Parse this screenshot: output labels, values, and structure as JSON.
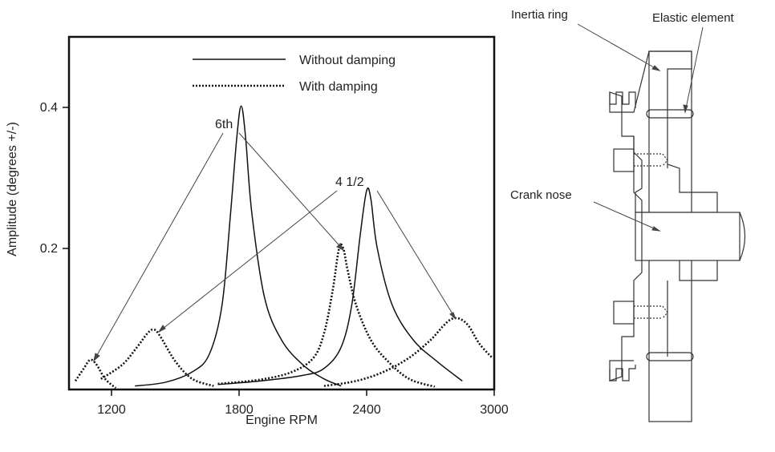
{
  "chart_data": {
    "type": "line",
    "title": "",
    "xlabel": "Engine RPM",
    "ylabel": "Amplitude (degrees +/-)",
    "xlim": [
      1000,
      3000
    ],
    "ylim": [
      0,
      0.5
    ],
    "x_ticks": [
      "1200",
      "1800",
      "2400",
      "3000"
    ],
    "y_ticks": [
      "0.2",
      "0.4"
    ],
    "grid": false,
    "legend_position": "top-center",
    "legend": [
      {
        "label": "Without damping",
        "style": "solid"
      },
      {
        "label": "With damping",
        "style": "dotted"
      }
    ],
    "annotations": [
      {
        "text": "6th",
        "x": 1790,
        "y": 0.375
      },
      {
        "text": "4 1/2",
        "x": 2335,
        "y": 0.296
      }
    ],
    "series": [
      {
        "style": "solid",
        "x": [
          1310,
          1450,
          1580,
          1660,
          1720,
          1760,
          1790,
          1810,
          1830,
          1860,
          1920,
          2000,
          2100,
          2200,
          2280
        ],
        "y": [
          0.005,
          0.01,
          0.025,
          0.05,
          0.12,
          0.25,
          0.36,
          0.402,
          0.36,
          0.25,
          0.13,
          0.07,
          0.035,
          0.015,
          0.005
        ]
      },
      {
        "style": "solid",
        "x": [
          1700,
          1900,
          2100,
          2200,
          2280,
          2330,
          2370,
          2400,
          2420,
          2450,
          2520,
          2620,
          2730,
          2850
        ],
        "y": [
          0.007,
          0.012,
          0.02,
          0.03,
          0.06,
          0.12,
          0.22,
          0.282,
          0.27,
          0.2,
          0.12,
          0.07,
          0.04,
          0.012
        ]
      },
      {
        "style": "dotted",
        "x": [
          1030,
          1070,
          1100,
          1130,
          1170,
          1220
        ],
        "y": [
          0.012,
          0.03,
          0.042,
          0.035,
          0.015,
          0.002
        ]
      },
      {
        "style": "dotted",
        "x": [
          1150,
          1250,
          1320,
          1370,
          1400,
          1430,
          1500,
          1580,
          1680
        ],
        "y": [
          0.015,
          0.035,
          0.06,
          0.08,
          0.085,
          0.075,
          0.04,
          0.015,
          0.005
        ]
      },
      {
        "style": "dotted",
        "x": [
          1700,
          1900,
          2050,
          2150,
          2200,
          2240,
          2270,
          2290,
          2310,
          2350,
          2420,
          2500,
          2600,
          2720
        ],
        "y": [
          0.008,
          0.014,
          0.025,
          0.045,
          0.08,
          0.14,
          0.2,
          0.2,
          0.17,
          0.12,
          0.07,
          0.04,
          0.015,
          0.004
        ]
      },
      {
        "style": "dotted",
        "x": [
          2200,
          2350,
          2480,
          2600,
          2700,
          2760,
          2800,
          2840,
          2880,
          2930,
          2990
        ],
        "y": [
          0.005,
          0.012,
          0.025,
          0.045,
          0.07,
          0.09,
          0.1,
          0.1,
          0.09,
          0.065,
          0.045
        ]
      }
    ]
  },
  "diagram": {
    "labels": {
      "inertia_ring": "Inertia ring",
      "elastic_element": "Elastic element",
      "crank_nose": "Crank nose"
    }
  }
}
